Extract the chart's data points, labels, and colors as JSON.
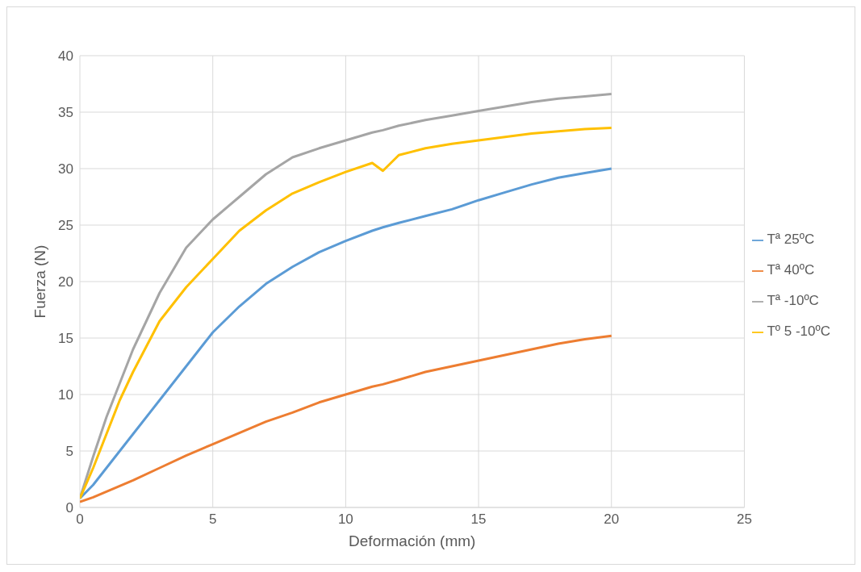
{
  "chart_data": {
    "type": "line",
    "xlabel": "Deformación (mm)",
    "ylabel": "Fuerza (N)",
    "x": [
      0,
      0.5,
      1,
      1.5,
      2,
      3,
      4,
      5,
      6,
      7,
      8,
      9,
      10,
      11,
      11.4,
      12,
      13,
      14,
      15,
      16,
      17,
      18,
      19,
      20
    ],
    "series": [
      {
        "name": "Tª 25ºC",
        "color": "#5b9bd5",
        "values": [
          0.8,
          2,
          3.5,
          5,
          6.5,
          9.5,
          12.5,
          15.5,
          17.8,
          19.8,
          21.3,
          22.6,
          23.6,
          24.5,
          24.8,
          25.2,
          25.8,
          26.4,
          27.2,
          27.9,
          28.6,
          29.2,
          29.6,
          30.0
        ]
      },
      {
        "name": "Tª 40ºC",
        "color": "#ed7d31",
        "values": [
          0.5,
          0.9,
          1.4,
          1.9,
          2.4,
          3.5,
          4.6,
          5.6,
          6.6,
          7.6,
          8.4,
          9.3,
          10.0,
          10.7,
          10.9,
          11.3,
          12,
          12.5,
          13,
          13.5,
          14,
          14.5,
          14.9,
          15.2
        ]
      },
      {
        "name": "Tª -10ºC",
        "color": "#a5a5a5",
        "values": [
          0.8,
          4.5,
          8,
          11,
          14,
          19,
          23,
          25.5,
          27.5,
          29.5,
          31,
          31.8,
          32.5,
          33.2,
          33.4,
          33.8,
          34.3,
          34.7,
          35.1,
          35.5,
          35.9,
          36.2,
          36.4,
          36.6
        ]
      },
      {
        "name": "Tº 5 -10ºC",
        "color": "#ffc000",
        "values": [
          0.8,
          3.5,
          6.5,
          9.5,
          12,
          16.5,
          19.5,
          22,
          24.5,
          26.3,
          27.8,
          28.8,
          29.7,
          30.5,
          29.8,
          31.2,
          31.8,
          32.2,
          32.5,
          32.8,
          33.1,
          33.3,
          33.5,
          33.6
        ]
      }
    ],
    "xlim": [
      0,
      25
    ],
    "xticks": [
      0,
      5,
      10,
      15,
      20,
      25
    ],
    "ylim": [
      0,
      40
    ],
    "yticks": [
      0,
      5,
      10,
      15,
      20,
      25,
      30,
      35,
      40
    ],
    "grid": true,
    "legend": "right"
  }
}
